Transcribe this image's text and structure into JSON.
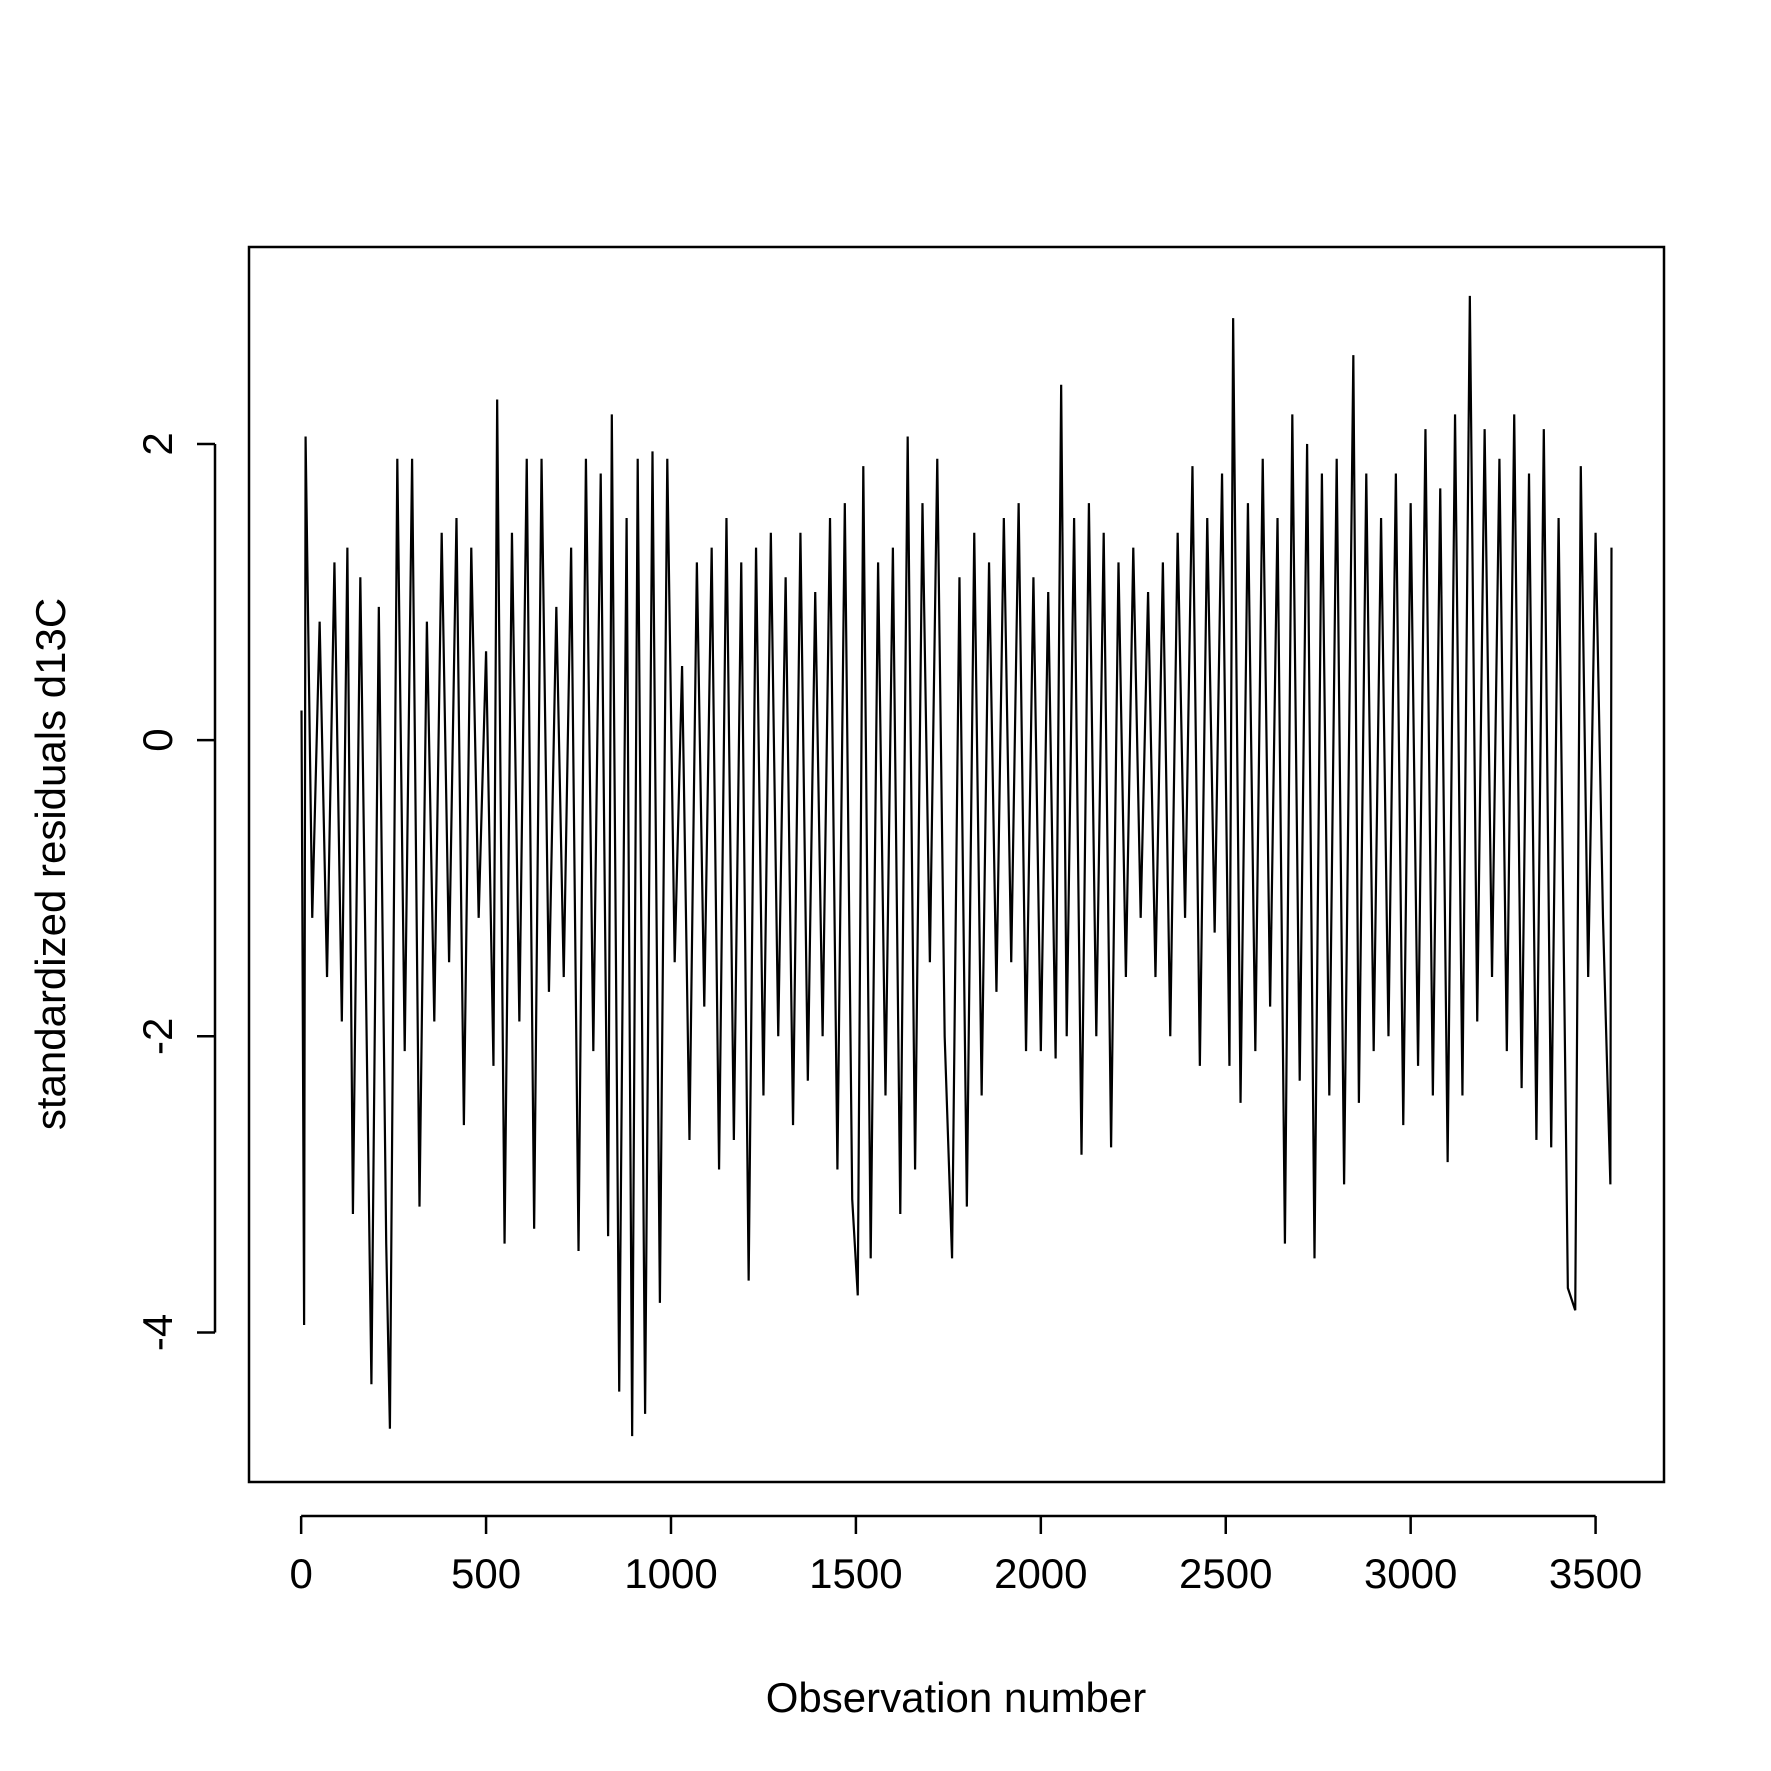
{
  "chart_data": {
    "type": "line",
    "xlabel": "Observation number",
    "ylabel": "standardized residuals d13C",
    "x": [
      1,
      8,
      12,
      30,
      50,
      70,
      90,
      110,
      125,
      140,
      160,
      190,
      210,
      230,
      240,
      260,
      280,
      300,
      320,
      340,
      360,
      380,
      400,
      420,
      440,
      460,
      480,
      500,
      520,
      530,
      550,
      570,
      590,
      610,
      630,
      650,
      670,
      690,
      710,
      730,
      750,
      770,
      790,
      810,
      830,
      840,
      860,
      880,
      895,
      910,
      930,
      950,
      970,
      990,
      1010,
      1030,
      1050,
      1070,
      1090,
      1110,
      1130,
      1150,
      1170,
      1190,
      1210,
      1230,
      1250,
      1270,
      1290,
      1310,
      1330,
      1350,
      1370,
      1390,
      1410,
      1430,
      1450,
      1470,
      1490,
      1505,
      1520,
      1540,
      1560,
      1580,
      1600,
      1620,
      1640,
      1660,
      1680,
      1700,
      1720,
      1740,
      1760,
      1780,
      1800,
      1820,
      1840,
      1860,
      1880,
      1900,
      1920,
      1940,
      1960,
      1980,
      2000,
      2020,
      2040,
      2055,
      2070,
      2090,
      2110,
      2130,
      2150,
      2170,
      2190,
      2210,
      2230,
      2250,
      2270,
      2290,
      2310,
      2330,
      2350,
      2370,
      2390,
      2410,
      2430,
      2450,
      2470,
      2490,
      2510,
      2520,
      2540,
      2560,
      2580,
      2600,
      2620,
      2640,
      2660,
      2680,
      2700,
      2720,
      2740,
      2760,
      2780,
      2800,
      2820,
      2845,
      2860,
      2880,
      2900,
      2920,
      2940,
      2960,
      2980,
      3000,
      3020,
      3040,
      3060,
      3080,
      3100,
      3120,
      3140,
      3160,
      3180,
      3200,
      3220,
      3240,
      3260,
      3280,
      3300,
      3320,
      3340,
      3360,
      3380,
      3400,
      3425,
      3445,
      3460,
      3480,
      3500,
      3520,
      3540,
      3543
    ],
    "series": [
      {
        "color": "#000000",
        "values": [
          0.2,
          -3.95,
          2.05,
          -1.2,
          0.8,
          -1.6,
          1.2,
          -1.9,
          1.3,
          -3.2,
          1.1,
          -4.35,
          0.9,
          -3.4,
          -4.65,
          1.9,
          -2.1,
          1.9,
          -3.15,
          0.8,
          -1.9,
          1.4,
          -1.5,
          1.5,
          -2.6,
          1.3,
          -1.2,
          0.6,
          -2.2,
          2.3,
          -3.4,
          1.4,
          -1.9,
          1.9,
          -3.3,
          1.9,
          -1.7,
          0.9,
          -1.6,
          1.3,
          -3.45,
          1.9,
          -2.1,
          1.8,
          -3.35,
          2.2,
          -4.4,
          1.5,
          -4.7,
          1.9,
          -4.55,
          1.95,
          -3.8,
          1.9,
          -1.5,
          0.5,
          -2.7,
          1.2,
          -1.8,
          1.3,
          -2.9,
          1.5,
          -2.7,
          1.2,
          -3.65,
          1.3,
          -2.4,
          1.4,
          -2.0,
          1.1,
          -2.6,
          1.4,
          -2.3,
          1.0,
          -2.0,
          1.5,
          -2.9,
          1.6,
          -3.1,
          -3.75,
          1.85,
          -3.5,
          1.2,
          -2.4,
          1.3,
          -3.2,
          2.05,
          -2.9,
          1.6,
          -1.5,
          1.9,
          -2.0,
          -3.5,
          1.1,
          -3.15,
          1.4,
          -2.4,
          1.2,
          -1.7,
          1.5,
          -1.5,
          1.6,
          -2.1,
          1.1,
          -2.1,
          1.0,
          -2.15,
          2.4,
          -2.0,
          1.5,
          -2.8,
          1.6,
          -2.0,
          1.4,
          -2.75,
          1.2,
          -1.6,
          1.3,
          -1.2,
          1.0,
          -1.6,
          1.2,
          -2.0,
          1.4,
          -1.2,
          1.85,
          -2.2,
          1.5,
          -1.3,
          1.8,
          -2.2,
          2.85,
          -2.45,
          1.6,
          -2.1,
          1.9,
          -1.8,
          1.5,
          -3.4,
          2.2,
          -2.3,
          2.0,
          -3.5,
          1.8,
          -2.4,
          1.9,
          -3.0,
          2.6,
          -2.45,
          1.8,
          -2.1,
          1.5,
          -2.0,
          1.8,
          -2.6,
          1.6,
          -2.2,
          2.1,
          -2.4,
          1.7,
          -2.85,
          2.2,
          -2.4,
          3.0,
          -1.9,
          2.1,
          -1.6,
          1.9,
          -2.1,
          2.2,
          -2.35,
          1.8,
          -2.7,
          2.1,
          -2.75,
          1.5,
          -3.7,
          -3.85,
          1.85,
          -1.6,
          1.4,
          -1.2,
          -3.0,
          1.3
        ]
      }
    ],
    "xlim": [
      -141,
      3685
    ],
    "xticks": [
      0,
      500,
      1000,
      1500,
      2000,
      2500,
      3000,
      3500
    ],
    "ylim": [
      -5.01,
      3.33
    ],
    "yticks": [
      -4,
      -2,
      0,
      2
    ]
  }
}
